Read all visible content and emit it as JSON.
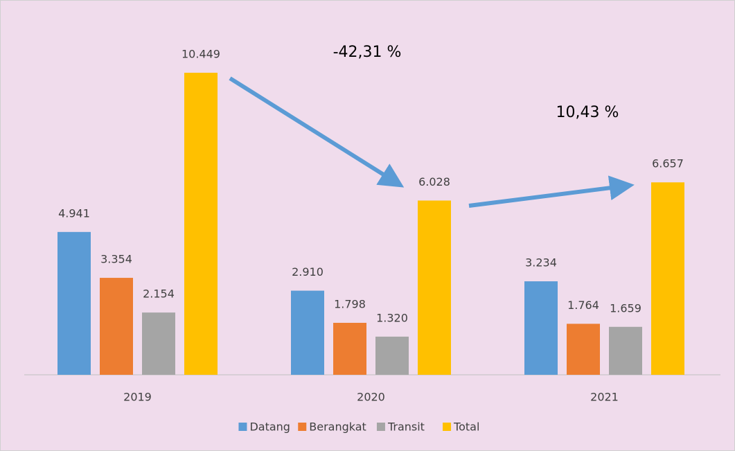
{
  "chart_data": {
    "type": "bar",
    "categories": [
      "2019",
      "2020",
      "2021"
    ],
    "series": [
      {
        "name": "Datang",
        "color": "#5b9bd5",
        "values": [
          4941,
          2910,
          3234
        ],
        "value_labels": [
          "4.941",
          "2.910",
          "3.234"
        ]
      },
      {
        "name": "Berangkat",
        "color": "#ed7d31",
        "values": [
          3354,
          1798,
          1764
        ],
        "value_labels": [
          "3.354",
          "1.798",
          "1.764"
        ]
      },
      {
        "name": "Transit",
        "color": "#a5a5a5",
        "values": [
          2154,
          1320,
          1659
        ],
        "value_labels": [
          "2.154",
          "1.320",
          "1.659"
        ]
      },
      {
        "name": "Total",
        "color": "#ffc000",
        "values": [
          10449,
          6028,
          6657
        ],
        "value_labels": [
          "10.449",
          "6.028",
          "6.657"
        ]
      }
    ],
    "annotations": [
      "-42,31 %",
      "10,43 %"
    ],
    "legend": "bottom"
  }
}
